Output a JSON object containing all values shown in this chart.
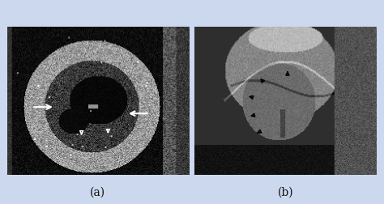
{
  "figure_width": 4.74,
  "figure_height": 2.52,
  "dpi": 100,
  "background_color": "#ccd8ee",
  "label_a": "(a)",
  "label_b": "(b)",
  "label_fontsize": 10,
  "label_color": "#111111"
}
